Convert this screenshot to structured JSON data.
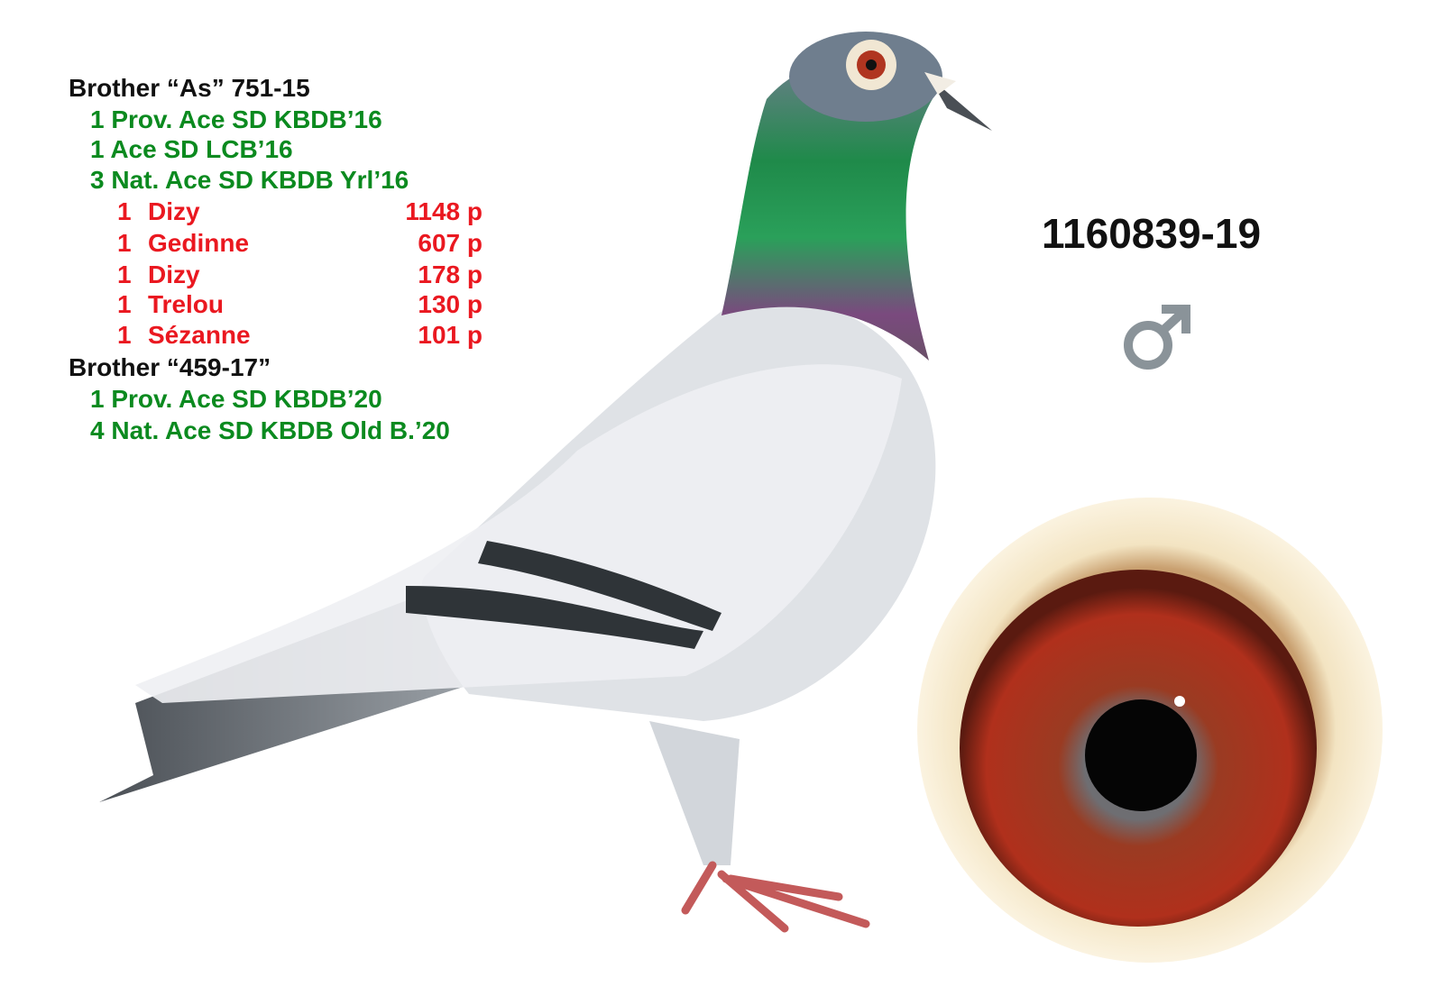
{
  "brothers": [
    {
      "title": "Brother “As” 751-15",
      "titles_won": [
        "1 Prov. Ace SD KBDB’16",
        "1 Ace SD LCB’16",
        "3 Nat. Ace SD KBDB Yrl’16"
      ],
      "results": [
        {
          "place": "1",
          "race": "Dizy",
          "birds": "1148 p"
        },
        {
          "place": "1",
          "race": "Gedinne",
          "birds": "607 p"
        },
        {
          "place": "1",
          "race": "Dizy",
          "birds": "178 p"
        },
        {
          "place": "1",
          "race": "Trelou",
          "birds": "130 p"
        },
        {
          "place": "1",
          "race": "Sézanne",
          "birds": "101 p"
        }
      ]
    },
    {
      "title": "Brother “459-17”",
      "titles_won": [
        "1 Prov. Ace SD KBDB’20",
        "4 Nat. Ace SD KBDB Old B.’20"
      ]
    }
  ],
  "ring_number": "1160839-19",
  "sex_icon": "male-symbol",
  "colors": {
    "title": "#111111",
    "titles_won": "#0b8a1f",
    "results": "#ea1820",
    "sex_icon": "#8a9399"
  }
}
